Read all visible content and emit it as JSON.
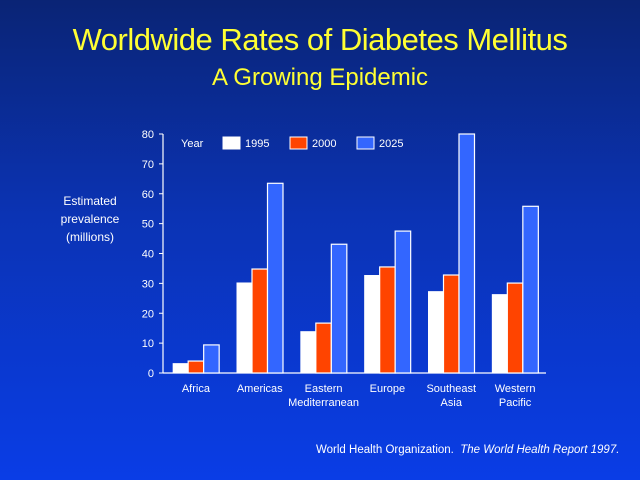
{
  "header": {
    "title": "Worldwide Rates of Diabetes Mellitus",
    "subtitle": "A Growing Epidemic"
  },
  "source": {
    "org": "World Health Organization.",
    "report": "The World Health Report 1997."
  },
  "colors": {
    "1995": "#ffffff",
    "2000": "#ff4400",
    "2025": "#3366ff",
    "title": "#ffff33",
    "axis": "#ffffff"
  },
  "chart_data": {
    "type": "bar",
    "title": "Worldwide Rates of Diabetes Mellitus",
    "subtitle": "A Growing Epidemic",
    "xlabel": "",
    "ylabel": "Estimated prevalence (millions)",
    "ylabel_lines": [
      "Estimated",
      "prevalence",
      "(millions)"
    ],
    "ylim": [
      0,
      80
    ],
    "yticks": [
      0,
      10,
      20,
      30,
      40,
      50,
      60,
      70,
      80
    ],
    "grid": false,
    "legend_title": "Year",
    "legend_position": "top-left",
    "categories": [
      [
        "Africa"
      ],
      [
        "Americas"
      ],
      [
        "Eastern",
        "Mediterranean"
      ],
      [
        "Europe"
      ],
      [
        "Southeast",
        "Asia"
      ],
      [
        "Western",
        "Pacific"
      ]
    ],
    "series": [
      {
        "name": "1995",
        "values": [
          3.3,
          30.3,
          14.0,
          32.8,
          27.4,
          26.4
        ]
      },
      {
        "name": "2000",
        "values": [
          4.0,
          34.8,
          16.7,
          35.5,
          32.8,
          30.1
        ]
      },
      {
        "name": "2025",
        "values": [
          9.4,
          63.5,
          43.1,
          47.5,
          80.0,
          55.8
        ]
      }
    ]
  }
}
